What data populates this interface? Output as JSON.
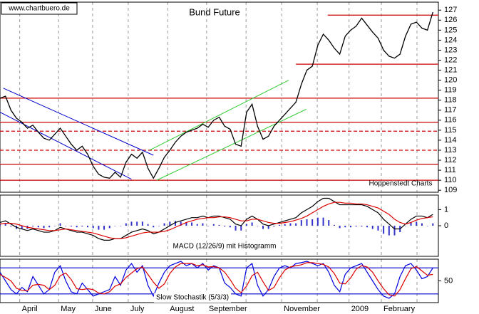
{
  "chart_data": [
    {
      "type": "line",
      "title": "Bund Future",
      "source": "www.chartbuero.de",
      "credit": "Hoppenstedt Charts",
      "ylim": [
        108.8,
        127.8
      ],
      "yticks": [
        109,
        110,
        111,
        112,
        113,
        114,
        115,
        116,
        117,
        118,
        119,
        120,
        121,
        122,
        123,
        124,
        125,
        126,
        127
      ],
      "color": "#000000",
      "values": [
        118.2,
        118.4,
        117,
        116.2,
        115.8,
        115.2,
        115.5,
        114.8,
        114.2,
        114,
        114.6,
        115.2,
        114.4,
        113.6,
        113,
        113.4,
        112.6,
        111.4,
        110.6,
        110.3,
        110.2,
        110.8,
        110.3,
        111.8,
        112.6,
        112.2,
        112.8,
        111.2,
        110.2,
        111.2,
        112.3,
        113,
        113.8,
        114.4,
        114.8,
        115,
        115.2,
        115.6,
        115.3,
        116,
        116.3,
        115.4,
        115.1,
        113.6,
        113.4,
        116.8,
        117.6,
        115.4,
        114.1,
        114.4,
        115.4,
        116,
        116.6,
        117.2,
        117.8,
        119.6,
        121,
        121.4,
        123.5,
        124.6,
        124,
        123.2,
        122.6,
        124.4,
        125,
        125.4,
        126.2,
        125.5,
        124.8,
        124.2,
        123,
        122.4,
        122.2,
        122.6,
        124.4,
        125.6,
        125.8,
        125.2,
        125,
        126.8
      ],
      "levels": [
        {
          "value": 126.5,
          "color": "#cc0000",
          "dashed": false,
          "from": 59.8
        },
        {
          "value": 121.6,
          "color": "#cc0000",
          "dashed": false,
          "from": 54
        },
        {
          "value": 118.2,
          "color": "#cc0000",
          "dashed": false,
          "from": 0
        },
        {
          "value": 115.8,
          "color": "#cc0000",
          "dashed": false,
          "from": 0
        },
        {
          "value": 114.9,
          "color": "#cc0000",
          "dashed": true,
          "from": 0
        },
        {
          "value": 113,
          "color": "#cc0000",
          "dashed": true,
          "from": 0
        },
        {
          "value": 111.6,
          "color": "#cc0000",
          "dashed": false,
          "from": 0
        },
        {
          "value": 110,
          "color": "#cc0000",
          "dashed": false,
          "from": 0
        }
      ],
      "trendlines": [
        {
          "x": [
            0.6,
            28
          ],
          "y": [
            119.2,
            112.5
          ],
          "color": "#0000cc"
        },
        {
          "x": [
            0,
            24
          ],
          "y": [
            116.8,
            110.1
          ],
          "color": "#0000cc"
        },
        {
          "x": [
            27.3,
            52.7
          ],
          "y": [
            113,
            120
          ],
          "color": "#33cc33"
        },
        {
          "x": [
            28.6,
            55.9
          ],
          "y": [
            110,
            117.1
          ],
          "color": "#33cc33"
        }
      ]
    },
    {
      "type": "line",
      "label": "MACD (12/26/9) mit Histogramm",
      "ylim": [
        -1.9,
        1.9
      ],
      "yticks": [
        0,
        1
      ],
      "series": [
        {
          "color": "#000000",
          "values": [
            0.2,
            0.3,
            0.1,
            -0.1,
            -0.2,
            -0.3,
            -0.2,
            -0.3,
            -0.4,
            -0.4,
            -0.3,
            -0.1,
            -0.2,
            -0.3,
            -0.4,
            -0.4,
            -0.5,
            -0.6,
            -0.8,
            -0.9,
            -0.9,
            -0.8,
            -0.8,
            -0.6,
            -0.4,
            -0.3,
            -0.2,
            -0.3,
            -0.5,
            -0.4,
            -0.2,
            0,
            0.2,
            0.3,
            0.4,
            0.5,
            0.5,
            0.6,
            0.5,
            0.6,
            0.6,
            0.5,
            0.4,
            0.1,
            0,
            0.4,
            0.6,
            0.4,
            0.1,
            0,
            0.1,
            0.2,
            0.3,
            0.4,
            0.5,
            0.8,
            1.0,
            1.2,
            1.5,
            1.7,
            1.7,
            1.5,
            1.3,
            1.3,
            1.3,
            1.3,
            1.3,
            1.2,
            1.0,
            0.8,
            0.4,
            0.1,
            -0.2,
            -0.2,
            0.1,
            0.4,
            0.6,
            0.6,
            0.5,
            0.7
          ]
        },
        {
          "color": "#dd0000",
          "values": [
            0.1,
            0.15,
            0.15,
            0.1,
            0,
            -0.1,
            -0.15,
            -0.2,
            -0.25,
            -0.3,
            -0.3,
            -0.25,
            -0.2,
            -0.25,
            -0.3,
            -0.35,
            -0.4,
            -0.45,
            -0.55,
            -0.65,
            -0.75,
            -0.8,
            -0.8,
            -0.75,
            -0.65,
            -0.55,
            -0.45,
            -0.4,
            -0.4,
            -0.4,
            -0.35,
            -0.25,
            -0.1,
            0.05,
            0.2,
            0.3,
            0.4,
            0.45,
            0.5,
            0.5,
            0.55,
            0.55,
            0.5,
            0.4,
            0.3,
            0.3,
            0.4,
            0.4,
            0.3,
            0.2,
            0.15,
            0.15,
            0.2,
            0.25,
            0.35,
            0.45,
            0.6,
            0.8,
            1.0,
            1.2,
            1.35,
            1.45,
            1.45,
            1.4,
            1.4,
            1.35,
            1.35,
            1.3,
            1.2,
            1.1,
            0.9,
            0.7,
            0.4,
            0.2,
            0.1,
            0.2,
            0.35,
            0.45,
            0.5,
            0.55
          ]
        }
      ],
      "histogram": {
        "color": "#3333cc",
        "values": [
          0.1,
          0.15,
          -0.05,
          -0.2,
          -0.2,
          -0.2,
          -0.05,
          -0.1,
          -0.15,
          -0.1,
          0,
          0.15,
          0,
          -0.05,
          -0.1,
          -0.05,
          -0.1,
          -0.15,
          -0.25,
          -0.25,
          -0.15,
          0,
          0,
          0.15,
          0.25,
          0.25,
          0.25,
          0.1,
          -0.1,
          0,
          0.15,
          0.25,
          0.3,
          0.25,
          0.2,
          0.2,
          0.1,
          0.15,
          0,
          0.1,
          0.05,
          -0.05,
          -0.1,
          -0.3,
          -0.3,
          0.1,
          0.2,
          0,
          -0.2,
          -0.2,
          -0.05,
          0.05,
          0.1,
          0.15,
          0.15,
          0.35,
          0.4,
          0.4,
          0.5,
          0.5,
          0.35,
          0.05,
          -0.15,
          -0.1,
          -0.1,
          -0.05,
          -0.05,
          -0.1,
          -0.2,
          -0.3,
          -0.5,
          -0.6,
          -0.6,
          -0.4,
          0,
          0.2,
          0.25,
          0.15,
          0,
          0.15
        ]
      }
    },
    {
      "type": "line",
      "label": "Slow Stochastik (5/3/3)",
      "ylim": [
        0,
        100
      ],
      "yticks": [
        50
      ],
      "levels": [
        {
          "value": 80,
          "color": "#0000cc",
          "dashed": false,
          "from": 0
        },
        {
          "value": 20,
          "color": "#0000cc",
          "dashed": false,
          "from": 0
        }
      ],
      "series": [
        {
          "color": "#0000dd",
          "values": [
            70,
            50,
            30,
            20,
            35,
            25,
            60,
            40,
            20,
            30,
            70,
            85,
            50,
            25,
            20,
            45,
            30,
            15,
            20,
            25,
            30,
            60,
            40,
            75,
            90,
            70,
            85,
            40,
            15,
            45,
            70,
            85,
            90,
            95,
            85,
            90,
            80,
            90,
            75,
            85,
            80,
            45,
            35,
            20,
            15,
            80,
            90,
            40,
            15,
            30,
            60,
            80,
            85,
            80,
            90,
            92,
            95,
            90,
            85,
            90,
            70,
            40,
            25,
            65,
            80,
            85,
            90,
            70,
            50,
            30,
            15,
            10,
            20,
            60,
            85,
            90,
            75,
            55,
            60,
            80
          ]
        },
        {
          "color": "#dd0000",
          "values": [
            65,
            58,
            50,
            33,
            28,
            27,
            40,
            42,
            40,
            30,
            40,
            62,
            68,
            53,
            32,
            30,
            32,
            30,
            22,
            20,
            25,
            38,
            43,
            58,
            68,
            78,
            82,
            65,
            47,
            33,
            43,
            67,
            82,
            90,
            90,
            90,
            85,
            87,
            82,
            83,
            80,
            70,
            53,
            33,
            23,
            38,
            62,
            70,
            48,
            28,
            35,
            57,
            75,
            82,
            85,
            87,
            92,
            92,
            90,
            88,
            82,
            67,
            45,
            43,
            57,
            77,
            85,
            82,
            70,
            50,
            32,
            18,
            15,
            30,
            55,
            78,
            83,
            73,
            63,
            65
          ]
        }
      ],
      "xlim": [
        0,
        80
      ],
      "xticks": [
        {
          "value": 3.6,
          "label": "April"
        },
        {
          "value": 10.7,
          "label": "May"
        },
        {
          "value": 16.9,
          "label": "June"
        },
        {
          "value": 23.4,
          "label": "July"
        },
        {
          "value": 30.6,
          "label": "August"
        },
        {
          "value": 37.7,
          "label": "September"
        },
        {
          "value": 51.4,
          "label": "November"
        },
        {
          "value": 63.7,
          "label": "2009"
        },
        {
          "value": 69.6,
          "label": "February"
        }
      ],
      "xgrid": [
        44.9,
        57.9,
        76.1
      ]
    }
  ]
}
